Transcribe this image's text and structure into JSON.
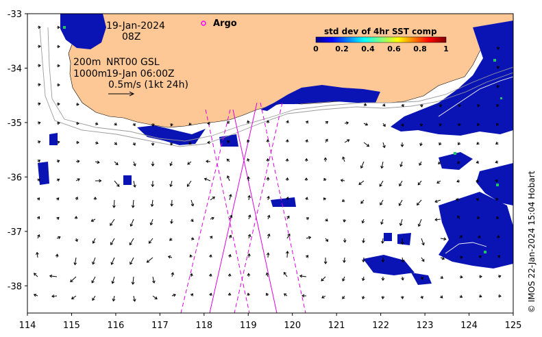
{
  "map": {
    "date_label": "19-Jan-2024",
    "time_label": "08Z",
    "contour_200": "200m",
    "contour_1000": "1000m",
    "product_label": "NRT00 GSL",
    "product_time": "19-Jan 06:00Z",
    "scale_label": "0.5m/s (1kt 24h)",
    "argo_label": "Argo",
    "credit": "© IMOS 22-Jan-2024 15:04 Hobart",
    "lon_range": [
      114,
      125
    ],
    "lat_range": [
      -38.5,
      -33
    ],
    "x_ticks": [
      "114",
      "115",
      "116",
      "117",
      "118",
      "119",
      "120",
      "121",
      "122",
      "123",
      "124",
      "125"
    ],
    "y_ticks": [
      "-33",
      "-34",
      "-35",
      "-36",
      "-37",
      "-38"
    ],
    "colors": {
      "land": "#fdc895",
      "sst_low": "#0a14b4",
      "argo_marker": "#ff00ff",
      "swath": "#dd00dd"
    }
  },
  "legend": {
    "title": "std dev of 4hr SST comp",
    "ticks": [
      "0",
      "0.2",
      "0.4",
      "0.6",
      "0.8",
      "1"
    ]
  }
}
